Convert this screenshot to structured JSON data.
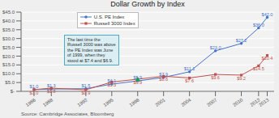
{
  "chart_data": {
    "type": "line",
    "title": "Dollar Growth by Index",
    "x": [
      1986,
      1988,
      1992,
      1995,
      1998,
      2001,
      2004,
      2007,
      2010,
      2012,
      2013
    ],
    "series": [
      {
        "name": "U.S. PE Index",
        "color": "#4472C4",
        "marker": "circle",
        "values": [
          1.0,
          1.3,
          1.5,
          4.1,
          5.9,
          7.9,
          11.1,
          23.0,
          27.2,
          36.0,
          42.0
        ],
        "value_labels": [
          "$1.0",
          "$1.3",
          "$1.5",
          "$4.1",
          "$5.9",
          "$7.9",
          "$11.1",
          "$23.0",
          "$27.2",
          "$36.0",
          "$42.0"
        ]
      },
      {
        "name": "Russell 3000 Index",
        "color": "#C0504D",
        "marker": "square",
        "values": [
          1.0,
          1.8,
          0.9,
          5.3,
          6.9,
          8.6,
          7.6,
          9.6,
          9.2,
          14.5,
          20.4
        ],
        "value_labels": [
          "$1.0",
          "$1.8",
          "$0.9",
          "$5.3",
          "$6.9",
          "$8.6",
          "$7.6",
          "$9.6",
          "$9.2",
          "$14.5",
          "$20.4"
        ]
      }
    ],
    "highlights": [
      {
        "x": 1998,
        "y": 6.9,
        "color": "#00B050",
        "marker": "triangle"
      }
    ],
    "xlim": [
      1984.5,
      2013.8
    ],
    "xticks": [
      1986,
      1988,
      1992,
      1995,
      1998,
      2001,
      2004,
      2007,
      2010,
      2012,
      2013
    ],
    "ylim": [
      0,
      45
    ],
    "yticks": [
      {
        "value": 0,
        "label": "$-"
      },
      {
        "value": 5,
        "label": "$5.0"
      },
      {
        "value": 10,
        "label": "$10.0"
      },
      {
        "value": 15,
        "label": "$15.0"
      },
      {
        "value": 20,
        "label": "$20.0"
      },
      {
        "value": 25,
        "label": "$25.0"
      },
      {
        "value": 30,
        "label": "$30.0"
      },
      {
        "value": 35,
        "label": "$35.0"
      },
      {
        "value": 40,
        "label": "$40.0"
      },
      {
        "value": 45,
        "label": "$45.0"
      }
    ],
    "grid": true,
    "legend": "upper left",
    "data_labels": true,
    "annotation": "The last time the\nRussell 3000 was above\nthe PE Index was June\nof 1999, when they\nstood at $7.4 and $6.9.",
    "source": "Source: Cambridge Associates, Bloomberg"
  }
}
